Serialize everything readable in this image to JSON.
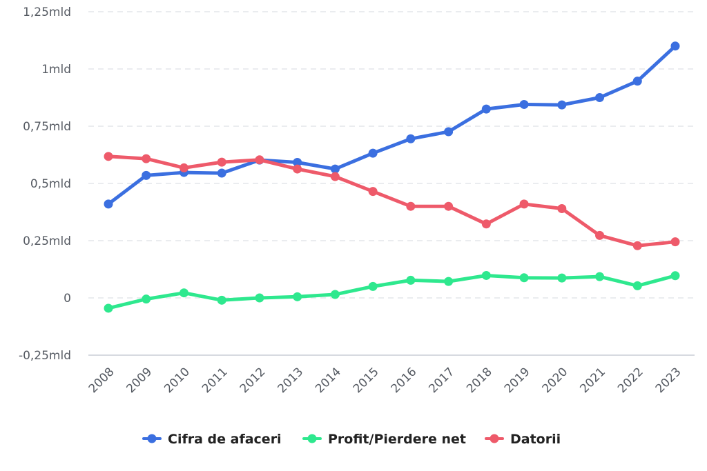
{
  "chart_data": {
    "type": "line",
    "title": "",
    "xlabel": "",
    "ylabel": "",
    "categories": [
      "2008",
      "2009",
      "2010",
      "2011",
      "2012",
      "2013",
      "2014",
      "2015",
      "2016",
      "2017",
      "2018",
      "2019",
      "2020",
      "2021",
      "2022",
      "2023"
    ],
    "ylim": [
      -0.25,
      1.25
    ],
    "yticks": [
      1.25,
      1.0,
      0.75,
      0.5,
      0.25,
      0,
      -0.25
    ],
    "ytick_labels": [
      "1,25mld",
      "1mld",
      "0,75mld",
      "0,5mld",
      "0,25mld",
      "0",
      "-0,25mld"
    ],
    "grid": true,
    "legend_position": "bottom-center",
    "series": [
      {
        "name": "Cifra de afaceri",
        "color": "#3b6fe0",
        "values": [
          0.41,
          0.535,
          0.548,
          0.545,
          0.602,
          0.592,
          0.563,
          0.632,
          0.695,
          0.726,
          0.825,
          0.845,
          0.843,
          0.875,
          0.947,
          1.1
        ]
      },
      {
        "name": "Profit/Pierdere net",
        "color": "#2ee88e",
        "values": [
          -0.045,
          -0.005,
          0.022,
          -0.01,
          0.0,
          0.005,
          0.015,
          0.05,
          0.077,
          0.072,
          0.098,
          0.088,
          0.087,
          0.093,
          0.053,
          0.097
        ]
      },
      {
        "name": "Datorii",
        "color": "#ee5a6a",
        "values": [
          0.618,
          0.608,
          0.568,
          0.593,
          0.603,
          0.563,
          0.53,
          0.465,
          0.4,
          0.4,
          0.323,
          0.41,
          0.39,
          0.273,
          0.228,
          0.245
        ]
      }
    ]
  }
}
